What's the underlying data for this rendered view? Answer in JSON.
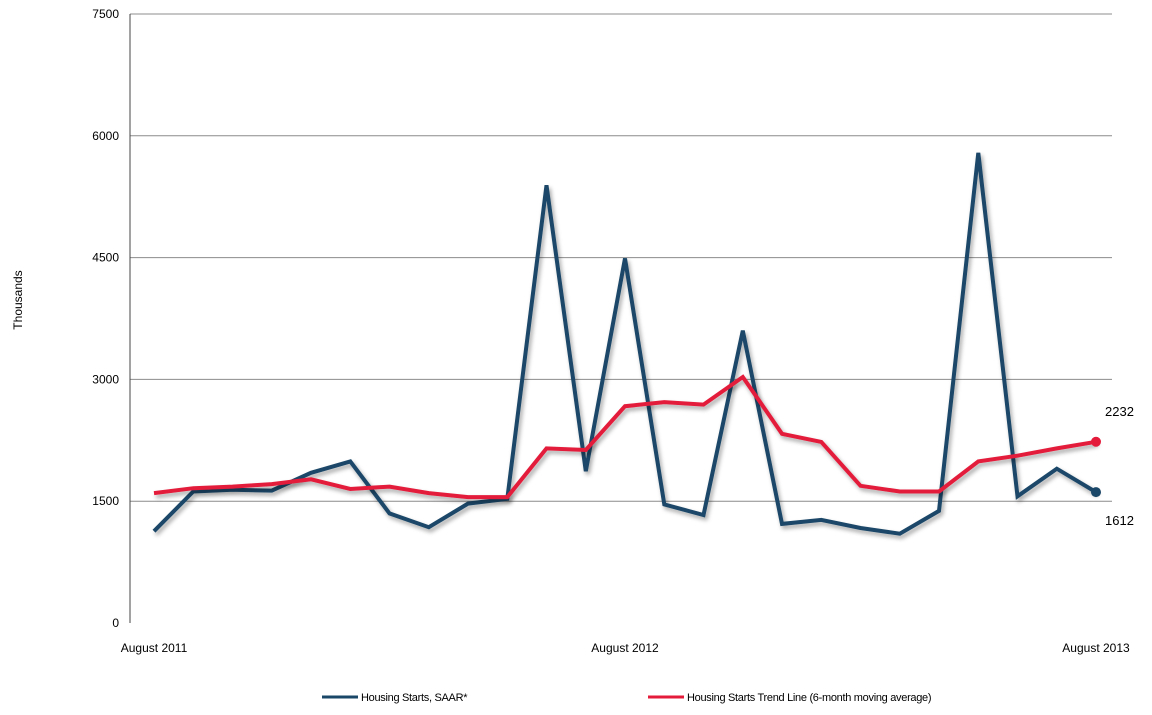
{
  "chart_data": {
    "type": "line",
    "title": "",
    "xlabel": "",
    "ylabel": "Thousands",
    "ylim": [
      0,
      7500
    ],
    "yticks": [
      0,
      1500,
      3000,
      4500,
      6000,
      7500
    ],
    "x_tick_labels": [
      {
        "index": 0,
        "label": "August 2011"
      },
      {
        "index": 12,
        "label": "August 2012"
      },
      {
        "index": 24,
        "label": "August 2013"
      }
    ],
    "x": [
      "2011-08",
      "2011-09",
      "2011-10",
      "2011-11",
      "2011-12",
      "2012-01",
      "2012-02",
      "2012-03",
      "2012-04",
      "2012-05",
      "2012-06",
      "2012-07",
      "2012-08",
      "2012-09",
      "2012-10",
      "2012-11",
      "2012-12",
      "2013-01",
      "2013-02",
      "2013-03",
      "2013-04",
      "2013-05",
      "2013-06",
      "2013-07",
      "2013-08"
    ],
    "grid": "horizontal",
    "legend_position": "bottom",
    "series": [
      {
        "name": "Housing Starts, SAAR*",
        "color": "#1a4767",
        "values": [
          1130,
          1620,
          1640,
          1630,
          1850,
          1990,
          1350,
          1180,
          1470,
          1530,
          5390,
          1870,
          4490,
          1460,
          1330,
          3600,
          1220,
          1270,
          1170,
          1100,
          1380,
          5790,
          1560,
          1900,
          1612
        ],
        "end_label": "1612"
      },
      {
        "name": "Housing Starts Trend Line (6-month moving average)",
        "color": "#e41b3a",
        "values": [
          1600,
          1660,
          1680,
          1710,
          1770,
          1650,
          1680,
          1600,
          1550,
          1550,
          2150,
          2130,
          2670,
          2720,
          2690,
          3030,
          2330,
          2230,
          1690,
          1620,
          1620,
          1990,
          2060,
          2150,
          2232
        ],
        "end_label": "2232"
      }
    ]
  }
}
